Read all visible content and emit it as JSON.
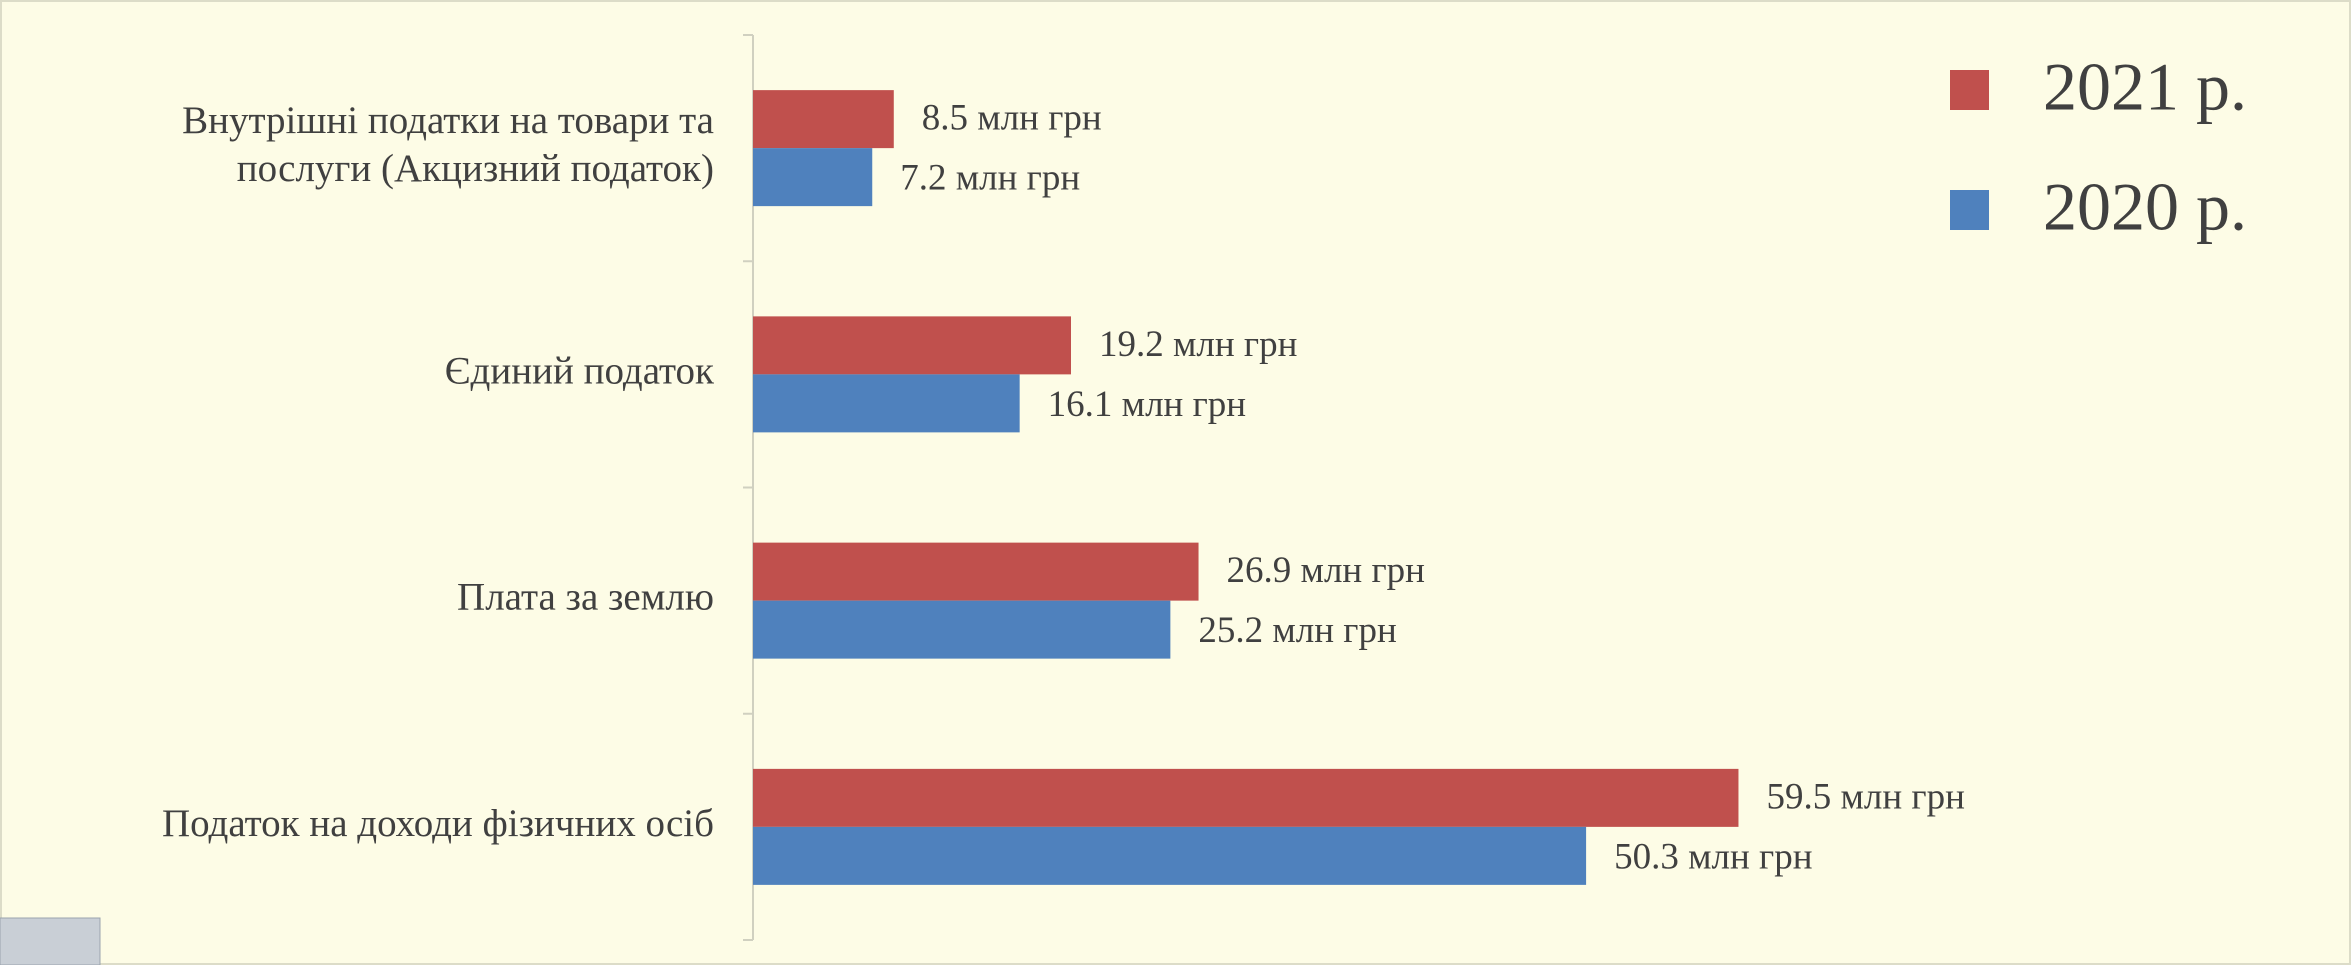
{
  "chart_data": {
    "type": "barh",
    "categories": [
      "Внутрішні податки на товари та\nпослуги  (Акцизний податок)",
      "Єдиний податок",
      "Плата за землю",
      "Податок на  доходи  фізичних осіб"
    ],
    "series": [
      {
        "name": "2021 р.",
        "color": "#c0504d",
        "values": [
          8.5,
          19.2,
          26.9,
          59.5
        ],
        "value_labels": [
          "8.5 млн грн",
          "19.2 млн грн",
          "26.9 млн грн",
          "59.5 млн грн"
        ]
      },
      {
        "name": "2020 р.",
        "color": "#4f81bd",
        "values": [
          7.2,
          16.1,
          25.2,
          50.3
        ],
        "value_labels": [
          "7.2 млн грн",
          "16.1 млн грн",
          "25.2 млн грн",
          "50.3 млн грн"
        ]
      }
    ],
    "xlim": [
      0,
      80
    ],
    "legend": "top-right"
  }
}
